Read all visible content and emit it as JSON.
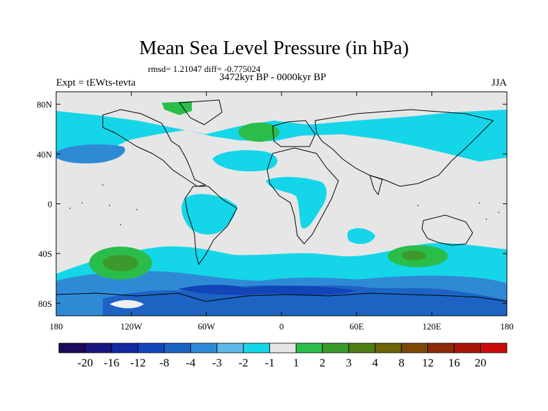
{
  "title": "Mean Sea Level Pressure (in hPa)",
  "stats": "rmsd= 1.21047  diff= -0.775024",
  "experiment": "Expt = tEWts-tevta",
  "period": "3472kyr BP - 0000kyr BP",
  "season": "JJA",
  "map": {
    "projection": "cylindrical-equidistant",
    "lon_range": [
      -180,
      180
    ],
    "lat_range": [
      -90,
      90
    ],
    "background_color": "#e6e6e6",
    "x_ticks": [
      {
        "lon": -180,
        "label": "180"
      },
      {
        "lon": -120,
        "label": "120W"
      },
      {
        "lon": -60,
        "label": "60W"
      },
      {
        "lon": 0,
        "label": "0"
      },
      {
        "lon": 60,
        "label": "60E"
      },
      {
        "lon": 120,
        "label": "120E"
      },
      {
        "lon": 180,
        "label": "180"
      }
    ],
    "y_ticks": [
      {
        "lat": 80,
        "label": "80N"
      },
      {
        "lat": 40,
        "label": "40N"
      },
      {
        "lat": 0,
        "label": "0"
      },
      {
        "lat": -40,
        "label": "40S"
      },
      {
        "lat": -80,
        "label": "80S"
      }
    ]
  },
  "colorbar": {
    "colors": [
      "#1e0a5a",
      "#1a1680",
      "#1328a3",
      "#1245b8",
      "#1d63c4",
      "#2f8ad6",
      "#5bb8e8",
      "#15d6e8",
      "#e6e6e6",
      "#2bbd4a",
      "#3c9a2c",
      "#4f7d16",
      "#6b6408",
      "#7d4808",
      "#8f2a0a",
      "#a8160b",
      "#cc0a0a"
    ],
    "labels": [
      "-20",
      "-16",
      "-12",
      "-8",
      "-4",
      "-3",
      "-2",
      "-1",
      "1",
      "2",
      "3",
      "4",
      "8",
      "12",
      "16",
      "20"
    ]
  }
}
